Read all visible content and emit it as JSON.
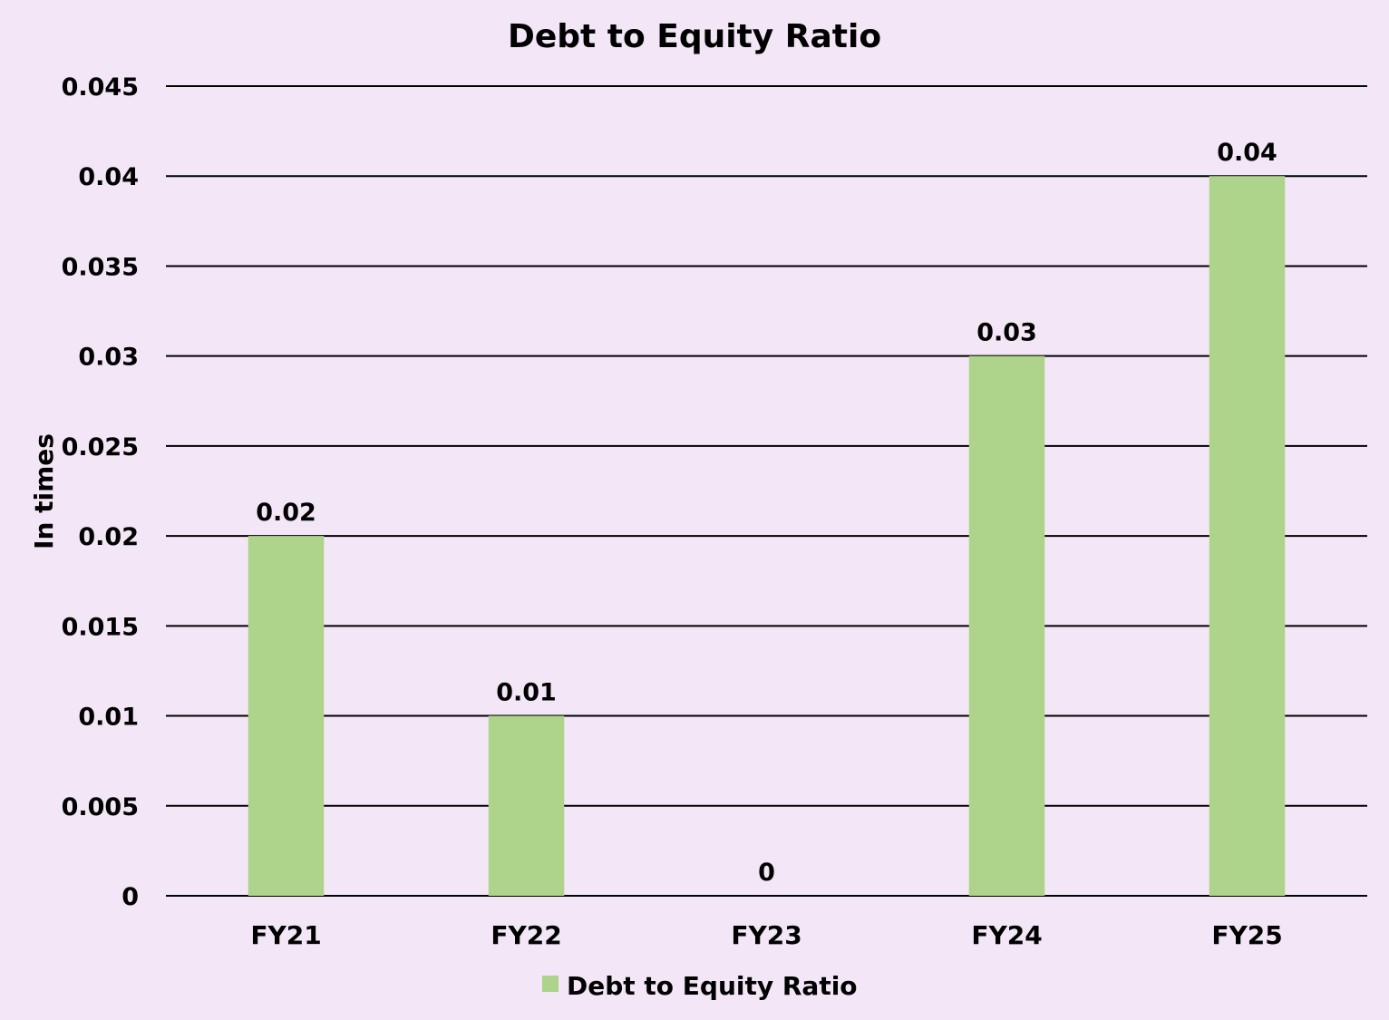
{
  "chart_data": {
    "type": "bar",
    "title": "Debt to Equity Ratio",
    "xlabel": "",
    "ylabel": "In times",
    "categories": [
      "FY21",
      "FY22",
      "FY23",
      "FY24",
      "FY25"
    ],
    "series": [
      {
        "name": "Debt to Equity Ratio",
        "values": [
          0.02,
          0.01,
          0,
          0.03,
          0.04
        ],
        "labels": [
          "0.02",
          "0.01",
          "0",
          "0.03",
          "0.04"
        ],
        "color": "#aed38a"
      }
    ],
    "ylim": [
      0,
      0.045
    ],
    "yticks": [
      "0",
      "0.005",
      "0.01",
      "0.015",
      "0.02",
      "0.025",
      "0.03",
      "0.035",
      "0.04",
      "0.045"
    ],
    "grid": true,
    "legend": "bottom-center",
    "colors": {
      "background": "#f3e6f6",
      "gridline": "#000000"
    }
  }
}
